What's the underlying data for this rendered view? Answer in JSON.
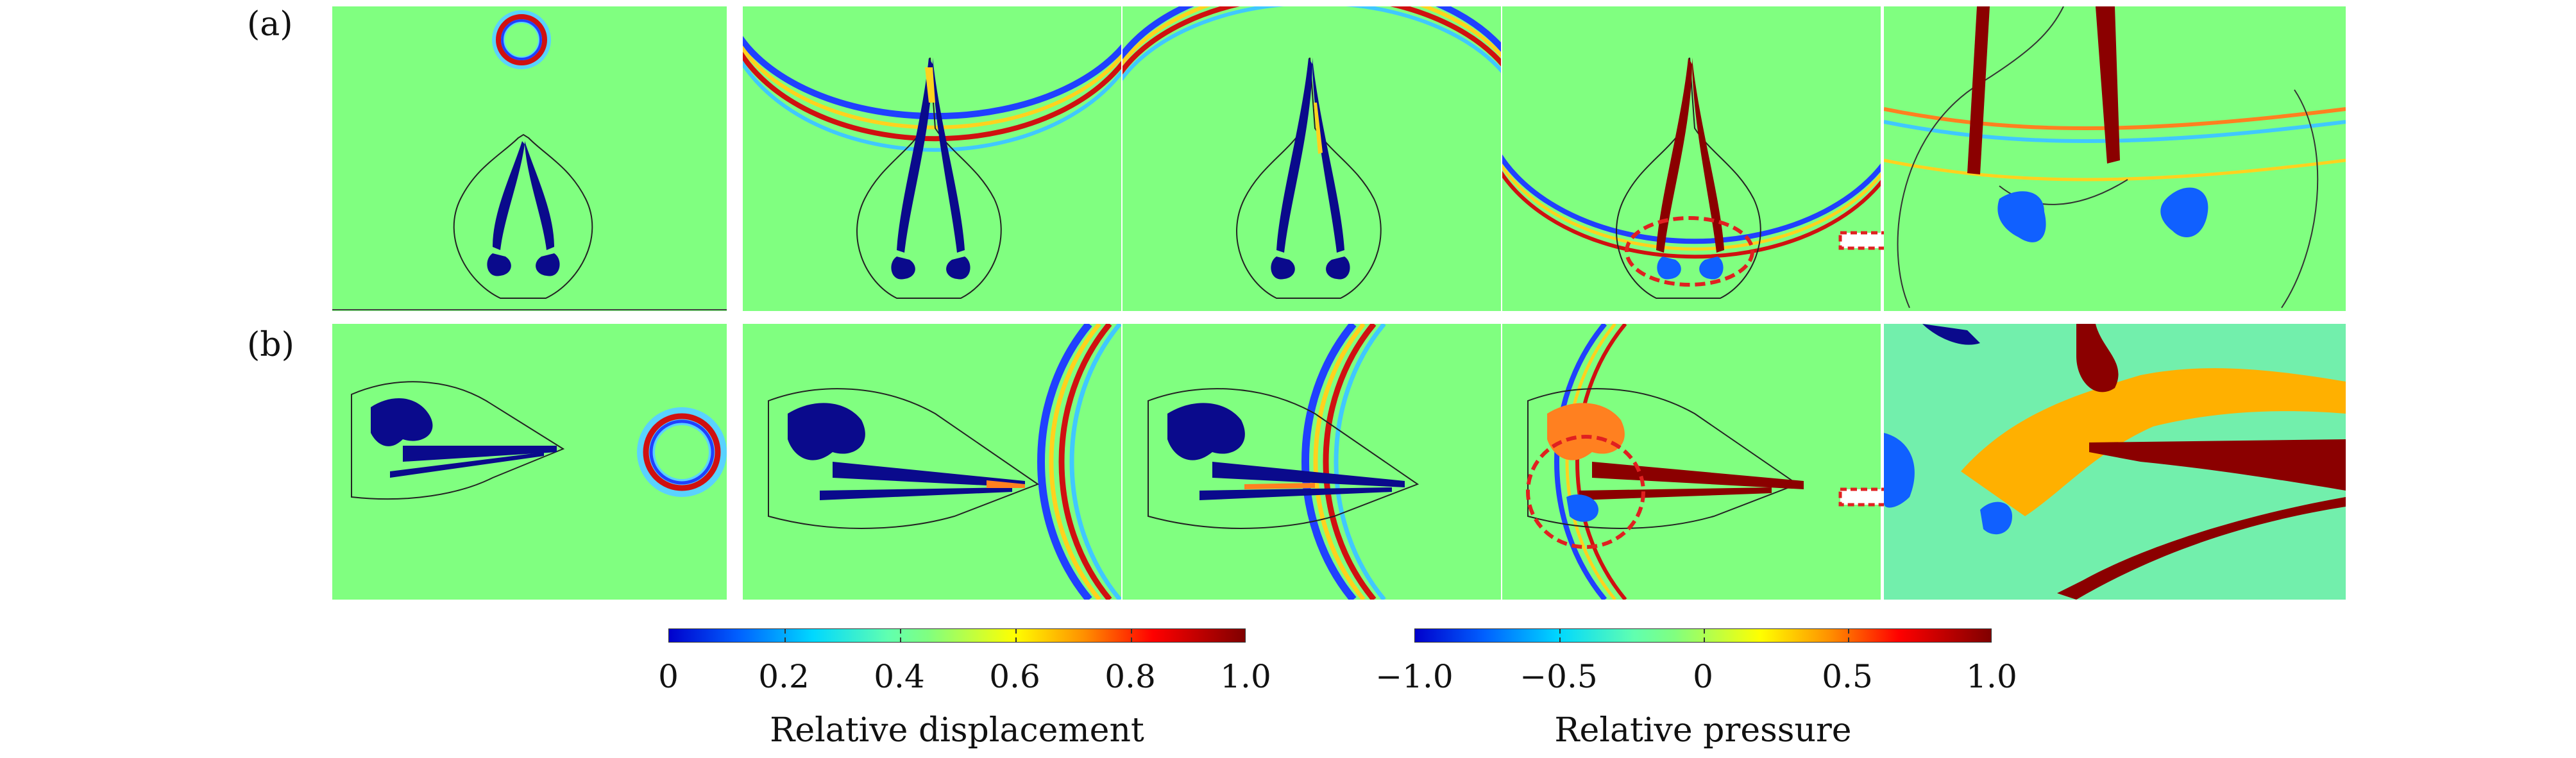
{
  "rows": [
    {
      "label": "(a)"
    },
    {
      "label": "(b)"
    }
  ],
  "colorbars": [
    {
      "title": "Relative displacement",
      "ticks": [
        "0",
        "0.2",
        "0.4",
        "0.6",
        "0.8",
        "1.0"
      ]
    },
    {
      "title": "Relative pressure",
      "ticks": [
        "−1.0",
        "−0.5",
        "0",
        "0.5",
        "1.0"
      ]
    }
  ],
  "colors": {
    "background_field": "#80ff80",
    "structure_dark": "#00008b",
    "structure_hot": "#8b0000",
    "highlight_ellipse": "#e02020"
  }
}
